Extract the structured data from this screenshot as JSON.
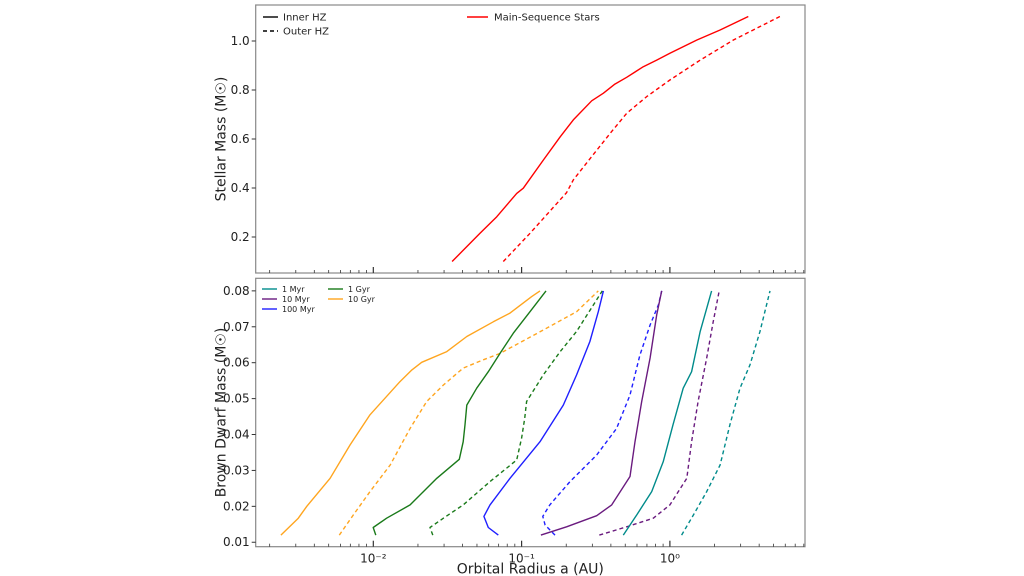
{
  "colors": {
    "red": "#ff0000",
    "teal": "#008b8b",
    "purple": "#6a1b7f",
    "blue": "#1f1fff",
    "green": "#1a7a1a",
    "orange": "#ffa51f",
    "axis": "#888888"
  },
  "chart_data": [
    {
      "type": "line",
      "ylabel": "Stellar Mass (M☉)",
      "xscale": "log",
      "xlim": [
        0.00161,
        8.15
      ],
      "ylim": [
        0.053,
        1.147
      ],
      "yticks": [
        0.2,
        0.4,
        0.6,
        0.8,
        1.0
      ],
      "yticklabels": [
        "0.2",
        "0.4",
        "0.6",
        "0.8",
        "1.0"
      ],
      "legend": {
        "style_entries": [
          {
            "label": "Inner HZ",
            "dash": "solid"
          },
          {
            "label": "Outer HZ",
            "dash": "dashed"
          }
        ],
        "series_entries": [
          {
            "label": "Main-Sequence Stars",
            "color": "red"
          }
        ],
        "placement": "top"
      },
      "series": [
        {
          "name": "Main-Sequence Stars",
          "boundary": "Inner HZ",
          "color": "red",
          "dash": "solid",
          "x": [
            0.034,
            0.0524,
            0.068,
            0.0927,
            0.1026,
            0.14,
            0.182,
            0.223,
            0.297,
            0.356,
            0.426,
            0.511,
            0.662,
            0.815,
            1.0,
            1.52,
            2.18,
            3.38
          ],
          "y": [
            0.1,
            0.215,
            0.283,
            0.378,
            0.399,
            0.514,
            0.609,
            0.678,
            0.756,
            0.787,
            0.824,
            0.852,
            0.895,
            0.922,
            0.95,
            1.004,
            1.045,
            1.1
          ]
        },
        {
          "name": "Main-Sequence Stars",
          "boundary": "Outer HZ",
          "color": "red",
          "dash": "dashed",
          "x": [
            0.0753,
            0.114,
            0.201,
            0.223,
            0.297,
            0.395,
            0.511,
            0.698,
            1.0,
            1.6,
            2.68,
            5.52
          ],
          "y": [
            0.1,
            0.215,
            0.381,
            0.433,
            0.528,
            0.623,
            0.705,
            0.773,
            0.841,
            0.922,
            1.004,
            1.1
          ]
        }
      ]
    },
    {
      "type": "line",
      "xlabel": "Orbital Radius a (AU)",
      "ylabel": "Brown Dwarf Mass (M☉)",
      "xscale": "log",
      "xlim": [
        0.00161,
        8.15
      ],
      "ylim": [
        0.00876,
        0.0835
      ],
      "xticks": [
        0.01,
        0.1,
        1
      ],
      "xticklabels": [
        "10⁻²",
        "10⁻¹",
        "10⁰"
      ],
      "yticks": [
        0.01,
        0.02,
        0.03,
        0.04,
        0.05,
        0.06,
        0.07,
        0.08
      ],
      "yticklabels": [
        "0.01",
        "0.02",
        "0.03",
        "0.04",
        "0.05",
        "0.06",
        "0.07",
        "0.08"
      ],
      "legend": {
        "entries": [
          {
            "label": "1 Myr",
            "color": "teal"
          },
          {
            "label": "10 Myr",
            "color": "purple"
          },
          {
            "label": "100 Myr",
            "color": "blue"
          },
          {
            "label": "1 Gyr",
            "color": "green"
          },
          {
            "label": "10 Gyr",
            "color": "orange"
          }
        ],
        "placement": "top-left"
      },
      "series": [
        {
          "name": "10 Gyr",
          "boundary": "Inner HZ",
          "color": "orange",
          "dash": "solid",
          "x": [
            0.00238,
            0.00312,
            0.00356,
            0.00511,
            0.00697,
            0.0095,
            0.0151,
            0.0182,
            0.0212,
            0.0313,
            0.0427,
            0.0644,
            0.0835,
            0.117,
            0.133
          ],
          "y": [
            0.012,
            0.0167,
            0.02,
            0.0278,
            0.0371,
            0.0455,
            0.0547,
            0.058,
            0.0601,
            0.0631,
            0.0673,
            0.0714,
            0.0738,
            0.0784,
            0.08
          ]
        },
        {
          "name": "10 Gyr",
          "boundary": "Outer HZ",
          "color": "orange",
          "dash": "dashed",
          "x": [
            0.0059,
            0.00733,
            0.0095,
            0.013,
            0.0177,
            0.0229,
            0.0297,
            0.0404,
            0.0552,
            0.0715,
            0.14,
            0.235,
            0.329
          ],
          "y": [
            0.012,
            0.0176,
            0.0241,
            0.0315,
            0.0417,
            0.0492,
            0.0538,
            0.0585,
            0.0608,
            0.0626,
            0.0691,
            0.0742,
            0.08
          ]
        },
        {
          "name": "1 Gyr",
          "boundary": "Inner HZ",
          "color": "green",
          "dash": "solid",
          "x": [
            0.0104,
            0.00998,
            0.0123,
            0.0177,
            0.0268,
            0.038,
            0.0404,
            0.0415,
            0.0427,
            0.0498,
            0.0596,
            0.0715,
            0.0879,
            0.114,
            0.146
          ],
          "y": [
            0.012,
            0.0141,
            0.0167,
            0.0204,
            0.0278,
            0.0331,
            0.038,
            0.0427,
            0.0482,
            0.0529,
            0.0575,
            0.0626,
            0.0682,
            0.0742,
            0.08
          ]
        },
        {
          "name": "1 Gyr",
          "boundary": "Outer HZ",
          "color": "green",
          "dash": "dashed",
          "x": [
            0.0252,
            0.0241,
            0.0297,
            0.0404,
            0.0612,
            0.0927,
            0.1,
            0.105,
            0.108,
            0.14,
            0.182,
            0.235,
            0.35
          ],
          "y": [
            0.012,
            0.0141,
            0.0167,
            0.0204,
            0.0269,
            0.0329,
            0.039,
            0.0445,
            0.0492,
            0.0566,
            0.0631,
            0.0687,
            0.08
          ]
        },
        {
          "name": "100 Myr",
          "boundary": "Inner HZ",
          "color": "blue",
          "dash": "solid",
          "x": [
            0.0696,
            0.0596,
            0.0557,
            0.0612,
            0.0835,
            0.133,
            0.191,
            0.235,
            0.289,
            0.329,
            0.356
          ],
          "y": [
            0.012,
            0.0141,
            0.0172,
            0.0204,
            0.0278,
            0.038,
            0.0482,
            0.0566,
            0.0659,
            0.0742,
            0.08
          ]
        },
        {
          "name": "100 Myr",
          "boundary": "Outer HZ",
          "color": "blue",
          "dash": "dashed",
          "x": [
            0.168,
            0.144,
            0.139,
            0.155,
            0.212,
            0.321,
            0.437,
            0.538,
            0.628,
            0.735,
            0.836,
            0.881
          ],
          "y": [
            0.012,
            0.0148,
            0.0172,
            0.0204,
            0.0269,
            0.0343,
            0.0417,
            0.051,
            0.0621,
            0.0705,
            0.0761,
            0.08
          ]
        },
        {
          "name": "10 Myr",
          "boundary": "Inner HZ",
          "color": "purple",
          "dash": "solid",
          "x": [
            0.135,
            0.201,
            0.321,
            0.405,
            0.538,
            0.582,
            0.646,
            0.735,
            0.815,
            0.881
          ],
          "y": [
            0.012,
            0.0143,
            0.0174,
            0.0204,
            0.0283,
            0.038,
            0.0492,
            0.0613,
            0.0733,
            0.08
          ]
        },
        {
          "name": "10 Myr",
          "boundary": "Outer HZ",
          "color": "purple",
          "dash": "dashed",
          "x": [
            0.334,
            0.511,
            0.773,
            1.0,
            1.3,
            1.4,
            1.55,
            1.77,
            1.96,
            2.15
          ],
          "y": [
            0.012,
            0.0143,
            0.0167,
            0.0204,
            0.0278,
            0.038,
            0.0492,
            0.0613,
            0.0714,
            0.08
          ]
        },
        {
          "name": "1 Myr",
          "boundary": "Inner HZ",
          "color": "teal",
          "dash": "solid",
          "x": [
            0.485,
            0.597,
            0.754,
            0.902,
            1.05,
            1.23,
            1.4,
            1.6,
            1.91
          ],
          "y": [
            0.012,
            0.0176,
            0.0241,
            0.0324,
            0.0427,
            0.0529,
            0.0575,
            0.0687,
            0.08
          ]
        },
        {
          "name": "1 Myr",
          "boundary": "Outer HZ",
          "color": "teal",
          "dash": "dashed",
          "x": [
            1.2,
            1.44,
            1.77,
            2.18,
            2.54,
            2.97,
            3.47,
            4.05,
            4.73
          ],
          "y": [
            0.012,
            0.0176,
            0.0241,
            0.0315,
            0.0427,
            0.0529,
            0.0594,
            0.0687,
            0.08
          ]
        }
      ]
    }
  ]
}
